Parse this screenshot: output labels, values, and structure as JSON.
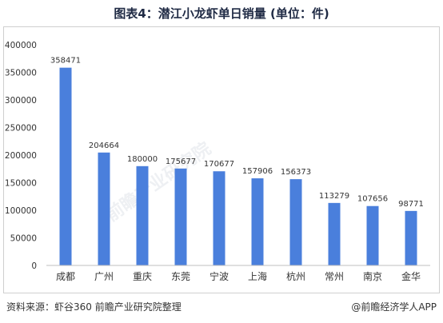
{
  "title": "图表4：潜江小龙虾单日销量 (单位：件)",
  "footer": {
    "source": "资料来源：虾谷360 前瞻产业研究院整理",
    "brand": "@前瞻经济学人APP"
  },
  "watermark": "前瞻产业研究院",
  "colors": {
    "bar": "#4a7fdc",
    "axis": "#bfbfbf",
    "text": "#333333"
  },
  "chart_data": {
    "type": "bar",
    "categories": [
      "成都",
      "广州",
      "重庆",
      "东莞",
      "宁波",
      "上海",
      "杭州",
      "常州",
      "南京",
      "金华"
    ],
    "values": [
      358471,
      204664,
      180000,
      175677,
      170677,
      157906,
      156373,
      113279,
      107656,
      98771
    ],
    "yticks": [
      0,
      50000,
      100000,
      150000,
      200000,
      250000,
      300000,
      350000,
      400000
    ],
    "ylim": [
      0,
      400000
    ],
    "grid": false,
    "legend": "none"
  }
}
